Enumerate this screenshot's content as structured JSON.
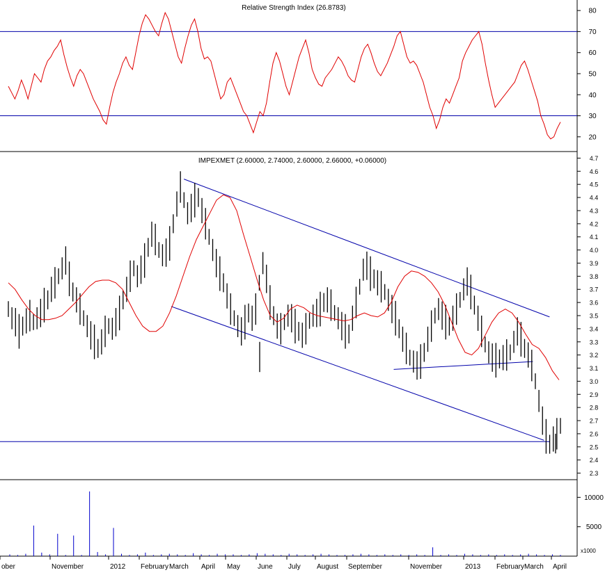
{
  "charts": {
    "rsi": {
      "title": "Relative Strength Index (26.8783)",
      "ticks": [
        "80",
        "70",
        "60",
        "50",
        "40",
        "30",
        "20"
      ]
    },
    "price": {
      "title": "IMPEXMET (2.60000, 2.74000, 2.60000, 2.66000, +0.06000)",
      "ticks": [
        "4.7",
        "4.6",
        "4.5",
        "4.4",
        "4.3",
        "4.2",
        "4.1",
        "4.0",
        "3.9",
        "3.8",
        "3.7",
        "3.6",
        "3.5",
        "3.4",
        "3.3",
        "3.2",
        "3.1",
        "3.0",
        "2.9",
        "2.8",
        "2.7",
        "2.6",
        "2.5",
        "2.4",
        "2.3"
      ]
    },
    "volume": {
      "ticks": [
        "10000",
        "5000"
      ],
      "unit": "x1000"
    },
    "xaxis": {
      "labels": [
        "ober",
        "November",
        "2012",
        "February",
        "March",
        "April",
        "May",
        "June",
        "July",
        "August",
        "September",
        "November",
        "2013",
        "February",
        "March",
        "April"
      ]
    }
  },
  "chart_data": [
    {
      "type": "line",
      "title": "Relative Strength Index (26.8783)",
      "ylim": [
        13,
        85
      ],
      "reference_lines": [
        70,
        30
      ],
      "series": [
        {
          "color": "#e00000",
          "values": [
            44,
            41,
            38,
            42,
            47,
            43,
            38,
            44,
            50,
            48,
            46,
            52,
            56,
            58,
            61,
            63,
            66,
            59,
            53,
            48,
            44,
            49,
            52,
            50,
            46,
            42,
            38,
            35,
            32,
            28,
            26,
            34,
            41,
            46,
            50,
            55,
            58,
            54,
            52,
            60,
            68,
            74,
            78,
            76,
            73,
            70,
            68,
            74,
            79,
            76,
            70,
            64,
            58,
            55,
            62,
            68,
            73,
            76,
            70,
            62,
            57,
            58,
            56,
            50,
            44,
            38,
            40,
            46,
            48,
            44,
            40,
            36,
            32,
            30,
            26,
            22,
            27,
            32,
            30,
            36,
            46,
            55,
            60,
            56,
            50,
            44,
            40,
            46,
            52,
            58,
            62,
            66,
            60,
            52,
            48,
            45,
            44,
            48,
            50,
            52,
            55,
            58,
            56,
            53,
            49,
            47,
            46,
            52,
            58,
            62,
            64,
            60,
            55,
            51,
            49,
            52,
            55,
            59,
            63,
            68,
            70,
            64,
            58,
            55,
            56,
            54,
            50,
            46,
            40,
            34,
            30,
            24,
            28,
            34,
            38,
            36,
            40,
            44,
            48,
            56,
            60,
            63,
            66,
            68,
            70,
            64,
            55,
            47,
            40,
            34,
            36,
            38,
            40,
            42,
            44,
            46,
            50,
            54,
            56,
            52,
            47,
            42,
            37,
            30,
            26,
            21,
            19,
            20,
            24,
            27
          ]
        }
      ]
    },
    {
      "type": "line",
      "title": "IMPEXMET (2.60000, 2.74000, 2.60000, 2.66000, +0.06000)",
      "ylim": [
        2.25,
        4.75
      ],
      "series": [
        {
          "color": "#000000",
          "values": [
            3.55,
            3.48,
            3.45,
            3.38,
            3.42,
            3.46,
            3.5,
            3.45,
            3.48,
            3.52,
            3.58,
            3.62,
            3.7,
            3.75,
            3.8,
            3.86,
            3.92,
            3.78,
            3.68,
            3.62,
            3.55,
            3.48,
            3.42,
            3.35,
            3.3,
            3.25,
            3.3,
            3.38,
            3.42,
            3.4,
            3.45,
            3.52,
            3.62,
            3.7,
            3.8,
            3.86,
            3.8,
            3.85,
            3.92,
            4.02,
            4.12,
            4.08,
            4.0,
            3.96,
            3.98,
            4.05,
            4.2,
            4.35,
            4.48,
            4.38,
            4.28,
            4.32,
            4.38,
            4.4,
            4.3,
            4.2,
            4.1,
            4.0,
            3.9,
            3.82,
            3.75,
            3.65,
            3.55,
            3.48,
            3.42,
            3.38,
            3.45,
            3.52,
            3.48,
            3.55,
            3.75,
            3.9,
            3.78,
            3.6,
            3.5,
            3.42,
            3.4,
            3.45,
            3.5,
            3.48,
            3.42,
            3.38,
            3.35,
            3.4,
            3.46,
            3.5,
            3.52,
            3.55,
            3.6,
            3.62,
            3.58,
            3.52,
            3.48,
            3.42,
            3.38,
            3.36,
            3.48,
            3.6,
            3.72,
            3.85,
            3.88,
            3.82,
            3.78,
            3.75,
            3.72,
            3.68,
            3.62,
            3.55,
            3.48,
            3.4,
            3.32,
            3.25,
            3.18,
            3.15,
            3.12,
            3.15,
            3.22,
            3.32,
            3.42,
            3.5,
            3.55,
            3.5,
            3.45,
            3.42,
            3.48,
            3.55,
            3.62,
            3.7,
            3.76,
            3.68,
            3.58,
            3.48,
            3.38,
            3.28,
            3.22,
            3.18,
            3.16,
            3.17,
            3.18,
            3.2,
            3.22,
            3.3,
            3.38,
            3.32,
            3.25,
            3.2,
            3.12,
            3.0,
            2.85,
            2.7,
            2.58,
            2.52,
            2.56,
            2.6,
            2.66
          ]
        },
        {
          "color": "#e00000",
          "values": [
            3.75,
            3.7,
            3.62,
            3.55,
            3.5,
            3.47,
            3.47,
            3.48,
            3.5,
            3.55,
            3.6,
            3.66,
            3.72,
            3.76,
            3.77,
            3.77,
            3.75,
            3.7,
            3.6,
            3.5,
            3.42,
            3.38,
            3.38,
            3.42,
            3.52,
            3.65,
            3.8,
            3.95,
            4.08,
            4.18,
            4.28,
            4.38,
            4.42,
            4.4,
            4.3,
            4.12,
            3.95,
            3.78,
            3.62,
            3.5,
            3.45,
            3.48,
            3.55,
            3.58,
            3.56,
            3.52,
            3.5,
            3.49,
            3.48,
            3.47,
            3.46,
            3.47,
            3.5,
            3.52,
            3.5,
            3.49,
            3.52,
            3.6,
            3.72,
            3.8,
            3.84,
            3.83,
            3.8,
            3.75,
            3.68,
            3.58,
            3.45,
            3.32,
            3.22,
            3.2,
            3.25,
            3.35,
            3.45,
            3.52,
            3.55,
            3.52,
            3.45,
            3.36,
            3.28,
            3.25,
            3.18,
            3.08,
            3.01
          ]
        }
      ],
      "trendlines": [
        {
          "from": [
            0.318,
            4.54
          ],
          "to": [
            0.95,
            3.49
          ]
        },
        {
          "from": [
            0.295,
            3.57
          ],
          "to": [
            0.94,
            2.55
          ]
        },
        {
          "from": [
            0.698,
            3.09
          ],
          "to": [
            0.95,
            3.15
          ]
        },
        {
          "from": [
            0.0,
            2.54
          ],
          "to": [
            0.95,
            2.54
          ]
        }
      ]
    },
    {
      "type": "bar",
      "title": "",
      "ylim": [
        0,
        13000
      ],
      "ticks": [
        10000,
        5000
      ],
      "series": [
        {
          "color": "#0000cc",
          "values": [
            300,
            200,
            400,
            5200,
            600,
            300,
            3800,
            200,
            3500,
            200,
            11000,
            700,
            300,
            4800,
            400,
            200,
            300,
            600,
            200,
            300,
            400,
            300,
            200,
            500,
            300,
            200,
            400,
            300,
            300,
            200,
            300,
            500,
            400,
            300,
            200,
            400,
            300,
            200,
            300,
            400,
            300,
            200,
            200,
            300,
            400,
            300,
            200,
            300,
            200,
            300,
            200,
            300,
            200,
            1500,
            200,
            300,
            200,
            400,
            300,
            200,
            300,
            200,
            300,
            200,
            300,
            400,
            300,
            200,
            300,
            200
          ]
        }
      ]
    }
  ]
}
